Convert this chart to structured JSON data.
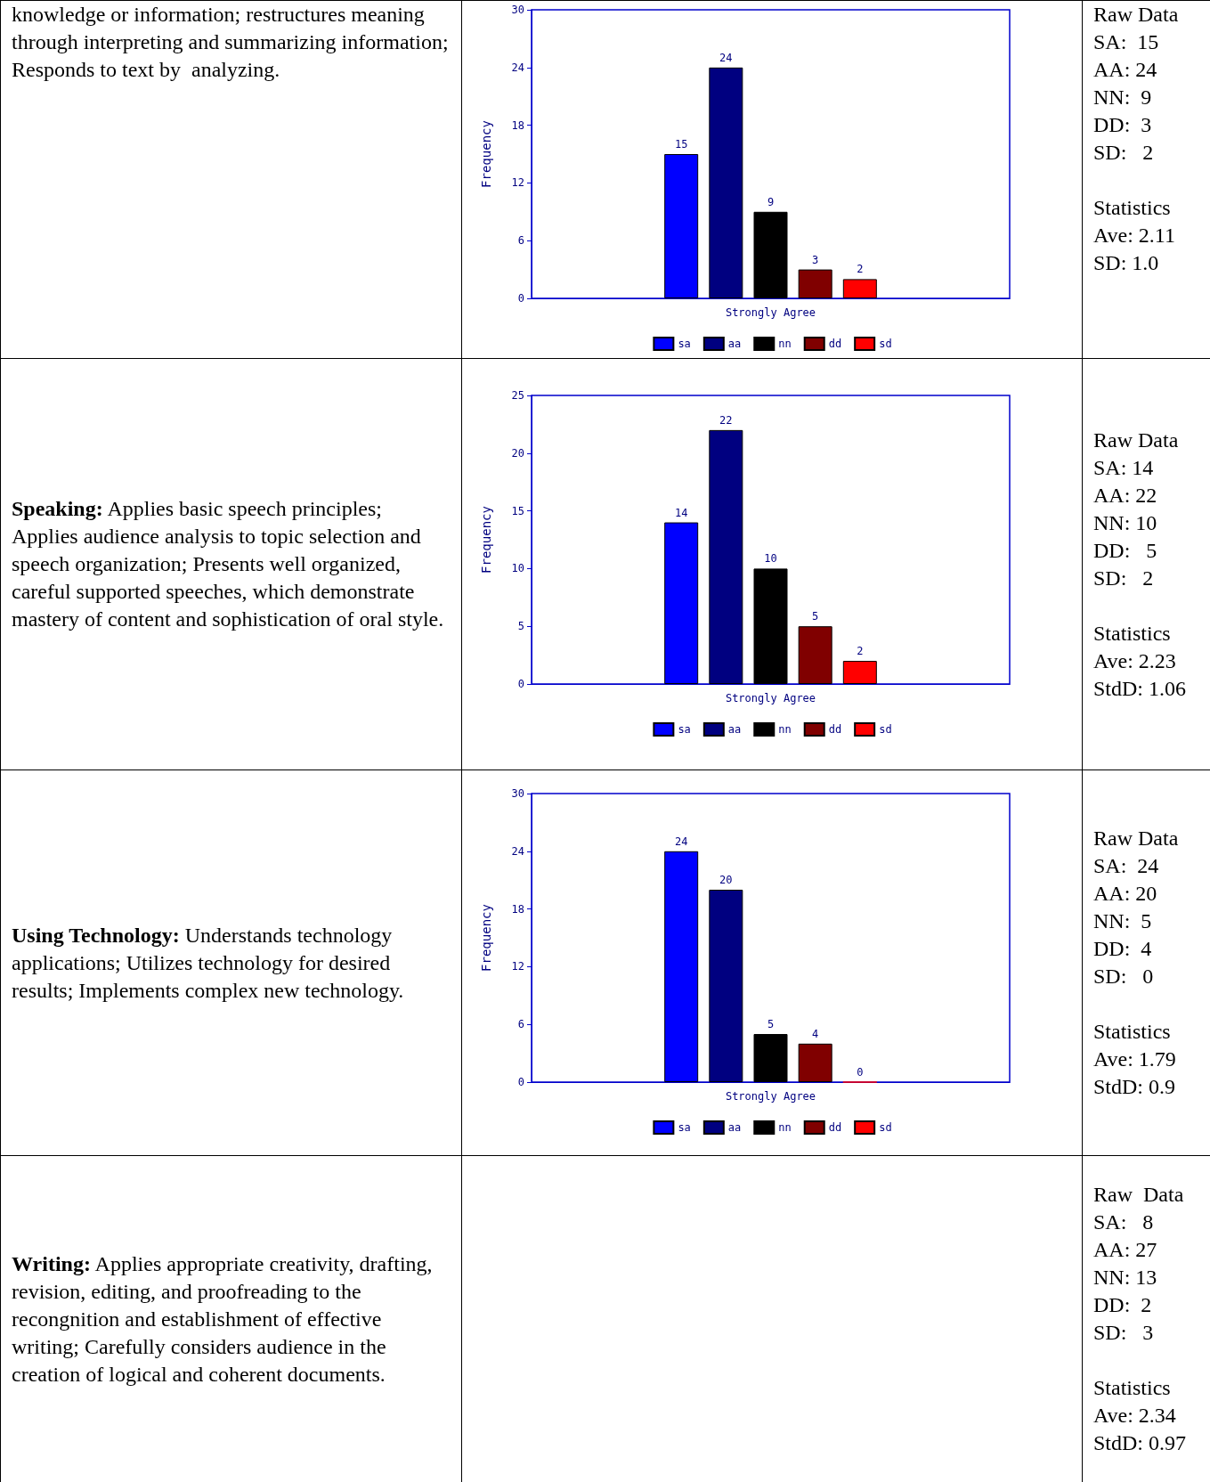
{
  "chart_data": [
    {
      "type": "other",
      "annotations": [
        "knowledge or information; restructures meaning through interpreting and summarizing information; Responds to text by  analyzing."
      ]
    },
    {
      "type": "bar",
      "categories": [
        "Strongly Agree"
      ],
      "ylabel": "Frequency",
      "ylim": [
        0,
        30
      ],
      "yticks": [
        0,
        6,
        12,
        18,
        24,
        30
      ],
      "grid": false,
      "legend": "bottom",
      "data_labels": true,
      "series": [
        {
          "name": "sa",
          "color": "#0000ff",
          "values": [
            15
          ]
        },
        {
          "name": "aa",
          "color": "#000080",
          "values": [
            24
          ]
        },
        {
          "name": "nn",
          "color": "#000000",
          "values": [
            9
          ]
        },
        {
          "name": "dd",
          "color": "#800000",
          "values": [
            3
          ]
        },
        {
          "name": "sd",
          "color": "#ff0000",
          "values": [
            2
          ]
        }
      ]
    },
    {
      "type": "other",
      "annotations": [
        "Raw Data\nSA:  15\nAA: 24\nNN:  9\nDD:  3\nSD:   2",
        "Statistics\nAve: 2.11\nSD: 1.0"
      ]
    },
    {
      "type": "other",
      "title": "Speaking:",
      "annotations": [
        "Applies basic speech principles; Applies audience analysis to topic selection and speech organization; Presents well organized, careful supported speeches, which demonstrate mastery of content and sophistication of oral style."
      ]
    },
    {
      "type": "bar",
      "categories": [
        "Strongly Agree"
      ],
      "ylabel": "Frequency",
      "ylim": [
        0,
        25
      ],
      "yticks": [
        0,
        5,
        10,
        15,
        20,
        25
      ],
      "grid": false,
      "legend": "bottom",
      "data_labels": true,
      "series": [
        {
          "name": "sa",
          "color": "#0000ff",
          "values": [
            14
          ]
        },
        {
          "name": "aa",
          "color": "#000080",
          "values": [
            22
          ]
        },
        {
          "name": "nn",
          "color": "#000000",
          "values": [
            10
          ]
        },
        {
          "name": "dd",
          "color": "#800000",
          "values": [
            5
          ]
        },
        {
          "name": "sd",
          "color": "#ff0000",
          "values": [
            2
          ]
        }
      ]
    },
    {
      "type": "other",
      "annotations": [
        "Raw Data\nSA: 14\nAA: 22\nNN: 10\nDD:   5\nSD:   2",
        "Statistics\nAve: 2.23\nStdD: 1.06"
      ]
    },
    {
      "type": "other",
      "title": "Using Technology:",
      "annotations": [
        "Understands technology applications; Utilizes technology for desired results; Implements complex new technology."
      ]
    },
    {
      "type": "bar",
      "categories": [
        "Strongly Agree"
      ],
      "ylabel": "Frequency",
      "ylim": [
        0,
        30
      ],
      "yticks": [
        0,
        6,
        12,
        18,
        24,
        30
      ],
      "grid": false,
      "legend": "bottom",
      "data_labels": true,
      "series": [
        {
          "name": "sa",
          "color": "#0000ff",
          "values": [
            24
          ]
        },
        {
          "name": "aa",
          "color": "#000080",
          "values": [
            20
          ]
        },
        {
          "name": "nn",
          "color": "#000000",
          "values": [
            5
          ]
        },
        {
          "name": "dd",
          "color": "#800000",
          "values": [
            4
          ]
        },
        {
          "name": "sd",
          "color": "#ff0000",
          "values": [
            0
          ]
        }
      ]
    },
    {
      "type": "other",
      "annotations": [
        "Raw Data\nSA:  24\nAA: 20\nNN:  5\nDD:  4\nSD:   0",
        "Statistics\nAve: 1.79\nStdD: 0.9"
      ]
    },
    {
      "type": "other",
      "title": "Writing:",
      "annotations": [
        "Applies appropriate creativity, drafting, revision, editing, and proofreading to the recongnition and establishment of effective writing; Carefully considers audience in the creation of logical and coherent documents."
      ]
    },
    {
      "type": "other",
      "annotations": [
        "Raw  Data\nSA:   8\nAA: 27\nNN: 13\nDD:  2\nSD:   3",
        "Statistics\nAve: 2.34\nStdD: 0.97"
      ]
    }
  ]
}
